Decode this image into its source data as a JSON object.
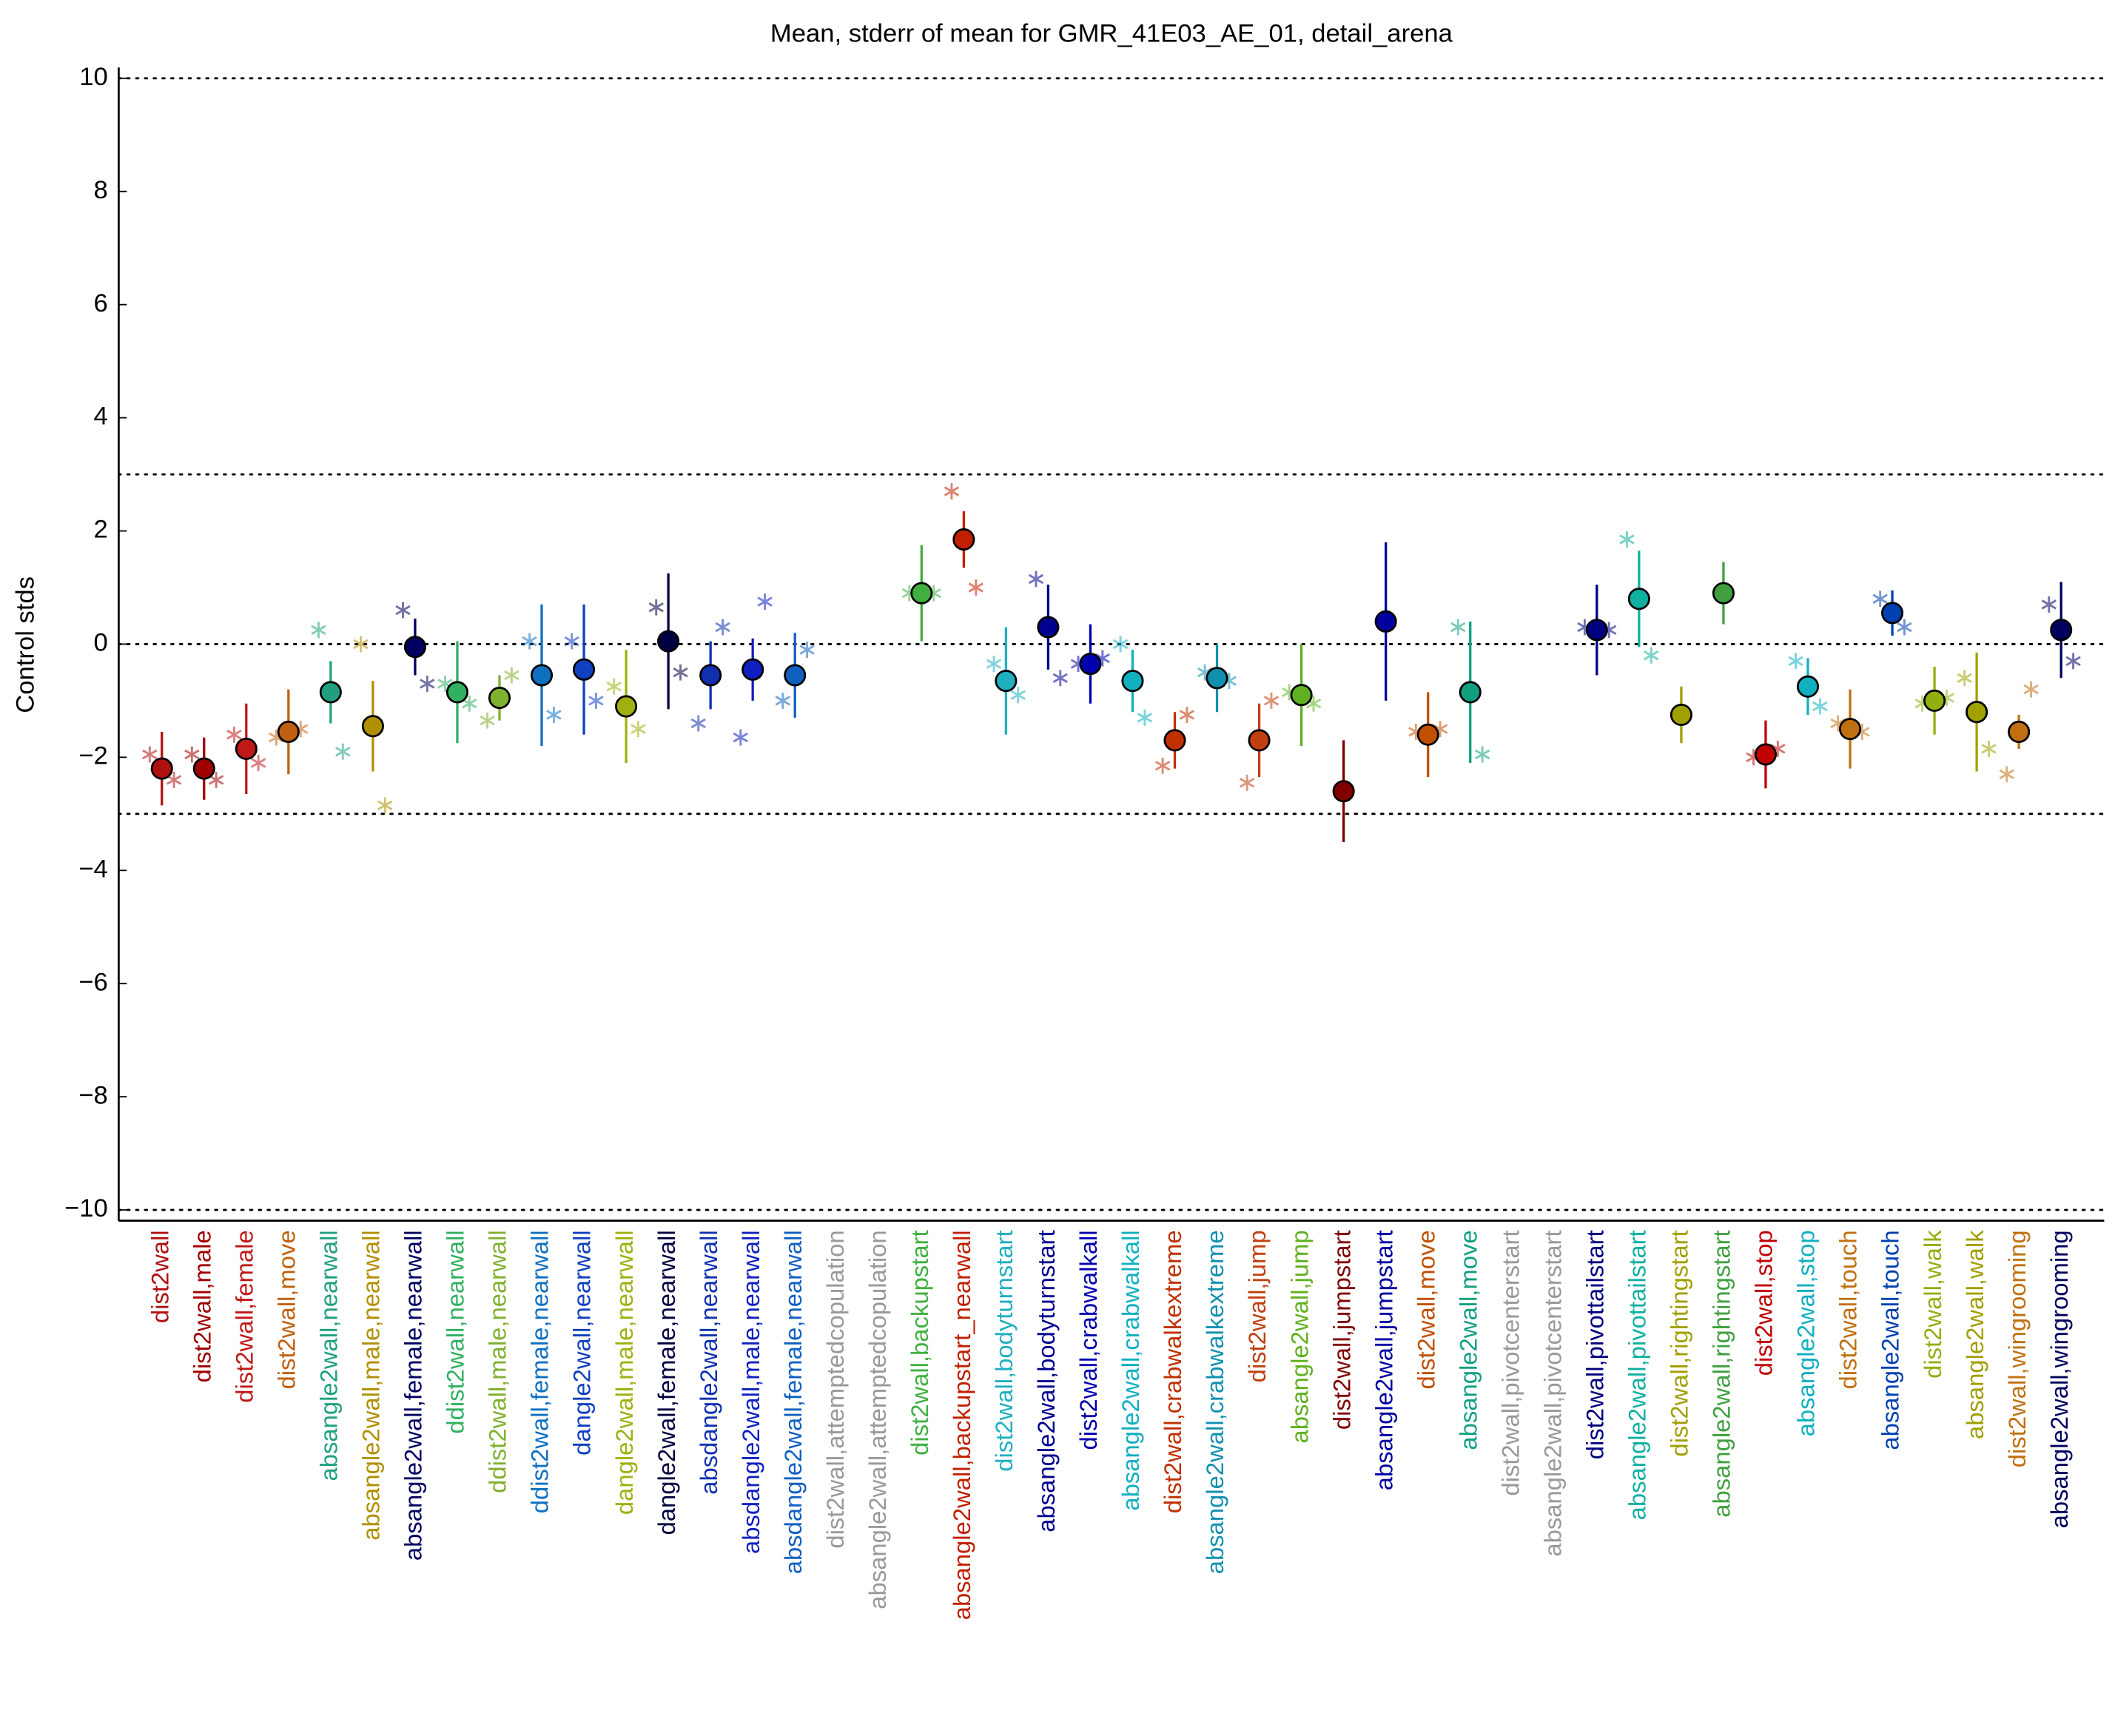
{
  "chart_data": {
    "type": "errorbar",
    "title": "Mean, stderr of mean for GMR_41E03_AE_01, detail_arena",
    "ylabel": "Control stds",
    "ylim": [
      -10.2,
      10.2
    ],
    "yticks": [
      {
        "value": -10,
        "label": "−10"
      },
      {
        "value": -8,
        "label": "−8"
      },
      {
        "value": -6,
        "label": "−6"
      },
      {
        "value": -4,
        "label": "−4"
      },
      {
        "value": -2,
        "label": "−2"
      },
      0,
      2,
      4,
      6,
      8,
      10
    ],
    "hlines": [
      -10,
      -3,
      0,
      3,
      10
    ],
    "categories": [
      "dist2wall",
      "dist2wall,male",
      "dist2wall,female",
      "dist2wall,move",
      "absangle2wall,nearwall",
      "absangle2wall,male,nearwall",
      "absangle2wall,female,nearwall",
      "ddist2wall,nearwall",
      "ddist2wall,male,nearwall",
      "ddist2wall,female,nearwall",
      "dangle2wall,nearwall",
      "dangle2wall,male,nearwall",
      "dangle2wall,female,nearwall",
      "absdangle2wall,nearwall",
      "absdangle2wall,male,nearwall",
      "absdangle2wall,female,nearwall",
      "dist2wall,attemptedcopulation",
      "absangle2wall,attemptedcopulation",
      "dist2wall,backupstart",
      "absangle2wall,backupstart_nearwall",
      "dist2wall,bodyturnstart",
      "absangle2wall,bodyturnstart",
      "dist2wall,crabwalkall",
      "absangle2wall,crabwalkall",
      "dist2wall,crabwalkextreme",
      "absangle2wall,crabwalkextreme",
      "dist2wall,jump",
      "absangle2wall,jump",
      "dist2wall,jumpstart",
      "absangle2wall,jumpstart",
      "dist2wall,move",
      "absangle2wall,move",
      "dist2wall,pivotcenterstart",
      "absangle2wall,pivotcenterstart",
      "dist2wall,pivottailstart",
      "absangle2wall,pivottailstart",
      "dist2wall,rightingstart",
      "absangle2wall,rightingstart",
      "dist2wall,stop",
      "absangle2wall,stop",
      "dist2wall,touch",
      "absangle2wall,touch",
      "dist2wall,walk",
      "absangle2wall,walk",
      "dist2wall,wingrooming",
      "absangle2wall,wingrooming"
    ],
    "colors": [
      "#b01010",
      "#a00000",
      "#c01818",
      "#c06010",
      "#20a080",
      "#b09000",
      "#000060",
      "#30b060",
      "#80b030",
      "#1070c0",
      "#1040c0",
      "#a0b010",
      "#000040",
      "#1030b0",
      "#1020c0",
      "#1060c0",
      "#999999",
      "#999999",
      "#40b040",
      "#c02000",
      "#20b0c0",
      "#000090",
      "#0000b0",
      "#10b0c0",
      "#c03000",
      "#1090b0",
      "#c04010",
      "#60b020",
      "#800000",
      "#0000a0",
      "#c05000",
      "#10a080",
      "#999999",
      "#999999",
      "#000080",
      "#10b0a0",
      "#a0a000",
      "#40a040",
      "#c00000",
      "#10b0c0",
      "#c07010",
      "#0040b0",
      "#90b010",
      "#a0a000",
      "#c07010",
      "#000060"
    ],
    "values": [
      -2.2,
      -2.2,
      -1.85,
      -1.55,
      -0.85,
      -1.45,
      -0.05,
      -0.85,
      -0.95,
      -0.55,
      -0.45,
      -1.1,
      0.05,
      -0.55,
      -0.45,
      -0.55,
      null,
      null,
      0.9,
      1.85,
      -0.65,
      0.3,
      -0.35,
      -0.65,
      -1.7,
      -0.6,
      -1.7,
      -0.9,
      -2.6,
      0.4,
      -1.6,
      -0.85,
      null,
      null,
      0.25,
      0.8,
      -1.25,
      0.9,
      -1.95,
      -0.75,
      -1.5,
      0.55,
      -1.0,
      -1.2,
      -1.55,
      0.25
    ],
    "errors": [
      0.65,
      0.55,
      0.8,
      0.75,
      0.55,
      0.8,
      0.5,
      0.9,
      0.4,
      1.25,
      1.15,
      1.0,
      1.2,
      0.6,
      0.55,
      0.75,
      null,
      null,
      0.85,
      0.5,
      0.95,
      0.75,
      0.7,
      0.55,
      0.5,
      0.6,
      0.65,
      0.9,
      0.9,
      1.4,
      0.75,
      1.25,
      null,
      null,
      0.8,
      0.85,
      0.5,
      0.55,
      0.6,
      0.5,
      0.7,
      0.4,
      0.6,
      1.05,
      0.3,
      0.85
    ],
    "left_values": [
      -1.95,
      -1.95,
      -1.6,
      -1.65,
      0.25,
      0.0,
      0.6,
      -0.7,
      -1.35,
      0.05,
      0.05,
      -0.75,
      0.65,
      -1.4,
      -1.65,
      -1.0,
      null,
      null,
      0.9,
      2.7,
      -0.35,
      1.15,
      -0.35,
      0.0,
      -2.15,
      -0.5,
      -2.45,
      -0.85,
      null,
      null,
      -1.55,
      0.3,
      null,
      null,
      0.3,
      1.85,
      null,
      null,
      -2.0,
      -0.3,
      -1.4,
      0.8,
      -1.05,
      -0.6,
      -2.3,
      0.7
    ],
    "right_values": [
      -2.4,
      -2.4,
      -2.1,
      -1.5,
      -1.9,
      -2.85,
      -0.7,
      -1.05,
      -0.55,
      -1.25,
      -1.0,
      -1.5,
      -0.5,
      0.3,
      0.75,
      -0.1,
      null,
      null,
      0.9,
      1.0,
      -0.9,
      -0.6,
      -0.25,
      -1.3,
      -1.25,
      -0.65,
      -1.0,
      -1.05,
      null,
      null,
      -1.5,
      -1.95,
      null,
      null,
      0.25,
      -0.2,
      null,
      null,
      -1.85,
      -1.1,
      -1.55,
      0.3,
      -0.95,
      -1.85,
      -0.8,
      -0.3
    ]
  }
}
